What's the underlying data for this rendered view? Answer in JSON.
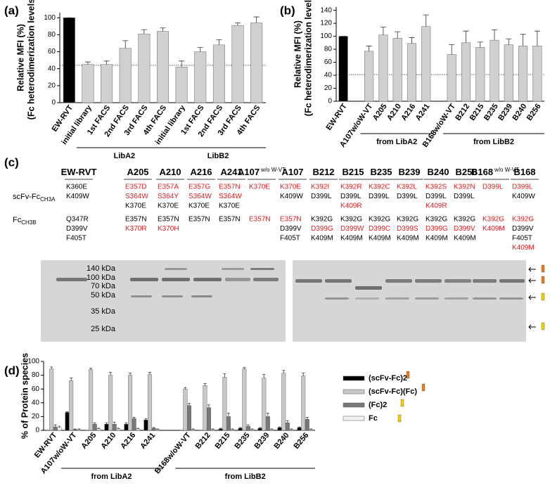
{
  "chart_data": [
    {
      "type": "bar",
      "panel": "(a)",
      "ylabel": [
        "Relative MFI (%)",
        "(Fc heterodimerization levels)"
      ],
      "categories": [
        "EW-RVT",
        "initial library",
        "1st FACS",
        "2nd FACS",
        "3rd FACS",
        "4th FACS",
        "initial library",
        "1st FACS",
        "2nd FACS",
        "3rd FACS",
        "4th FACS"
      ],
      "values": [
        100,
        45,
        45,
        64,
        81,
        84,
        42,
        60,
        68,
        91,
        94
      ],
      "errors": [
        0,
        3,
        4,
        9,
        5,
        4,
        7,
        5,
        6,
        3,
        7
      ],
      "colors": [
        "#000000",
        "#d0d0d0",
        "#d0d0d0",
        "#d0d0d0",
        "#d0d0d0",
        "#d0d0d0",
        "#d0d0d0",
        "#d0d0d0",
        "#d0d0d0",
        "#d0d0d0",
        "#d0d0d0"
      ],
      "ylim": [
        0,
        106
      ],
      "yticks": [
        0,
        20,
        40,
        60,
        80,
        100
      ],
      "ref_line": 44,
      "groups": [
        {
          "label": "LibA2",
          "from": 1,
          "to": 5
        },
        {
          "label": "LibB2",
          "from": 6,
          "to": 10
        }
      ]
    },
    {
      "type": "bar",
      "panel": "(b)",
      "ylabel": [
        "Relative MFI (%)",
        "(Fc heterodimerization levels)"
      ],
      "categories": [
        "EW-RVT",
        "A107w/oW-VT",
        "A205",
        "A210",
        "A216",
        "A241",
        "B168w/oW-VT",
        "B212",
        "B215",
        "B235",
        "B239",
        "B240",
        "B256"
      ],
      "values": [
        100,
        77,
        102,
        97,
        89,
        115,
        72,
        90,
        83,
        94,
        87,
        85,
        85
      ],
      "errors": [
        0,
        8,
        12,
        10,
        9,
        18,
        15,
        18,
        8,
        16,
        9,
        18,
        23
      ],
      "colors": [
        "#000000",
        "#d0d0d0",
        "#d0d0d0",
        "#d0d0d0",
        "#d0d0d0",
        "#d0d0d0",
        "#d0d0d0",
        "#d0d0d0",
        "#d0d0d0",
        "#d0d0d0",
        "#d0d0d0",
        "#d0d0d0",
        "#d0d0d0"
      ],
      "ylim": [
        0,
        145
      ],
      "yticks": [
        0,
        20,
        40,
        60,
        80,
        100,
        120,
        140
      ],
      "ref_line": 41,
      "groups": [
        {
          "label": "from LibA2",
          "from": 1,
          "to": 5
        },
        {
          "label": "from LibB2",
          "from": 6,
          "to": 12
        }
      ]
    },
    {
      "type": "bar",
      "panel": "(d)",
      "ylabel": [
        "% of Protein species"
      ],
      "categories": [
        "EW-RVT",
        "A107w/oW-VT",
        "A205",
        "A210",
        "A216",
        "A241",
        "B168w/oW-VT",
        "B212",
        "B215",
        "B235",
        "B239",
        "B240",
        "B256"
      ],
      "series": [
        {
          "name": "(scFv-Fc)2",
          "color": "#000000",
          "values": [
            0,
            26,
            0,
            9,
            9,
            15,
            0,
            0,
            2,
            3,
            3,
            4,
            4
          ],
          "errors": [
            0,
            1,
            0,
            2,
            2,
            2,
            0,
            0,
            1,
            1,
            1,
            1,
            1
          ]
        },
        {
          "name": "(scFv-Fc)(Fc)",
          "color": "#c8c8c8",
          "values": [
            89,
            72,
            88,
            80,
            80,
            81,
            60,
            65,
            77,
            89,
            76,
            83,
            79
          ],
          "errors": [
            3,
            4,
            2,
            4,
            3,
            3,
            2,
            3,
            5,
            2,
            5,
            4,
            4
          ]
        },
        {
          "name": "(Fc)2",
          "color": "#787878",
          "values": [
            5,
            1,
            9,
            9,
            17,
            3,
            36,
            33,
            20,
            6,
            20,
            11,
            16
          ],
          "errors": [
            3,
            1,
            2,
            3,
            2,
            1,
            3,
            4,
            5,
            2,
            5,
            3,
            3
          ]
        },
        {
          "name": "Fc",
          "color": "#f2f2f2",
          "values": [
            4,
            1,
            2,
            2,
            2,
            1,
            1,
            1,
            1,
            1,
            1,
            1,
            1
          ],
          "errors": [
            2,
            1,
            1,
            1,
            1,
            1,
            1,
            1,
            1,
            1,
            1,
            1,
            1
          ]
        }
      ],
      "ylim": [
        0,
        100
      ],
      "yticks": [
        0,
        20,
        40,
        60,
        80,
        100
      ],
      "groups": [
        {
          "label": "from LibA2",
          "from": 1,
          "to": 5
        },
        {
          "label": "from LibB2",
          "from": 6,
          "to": 12
        }
      ]
    }
  ],
  "mutation_table": {
    "panel": "(c)",
    "row_labels": [
      {
        "text": "scFv-Fc",
        "sub": "CH3A"
      },
      {
        "text": "Fc",
        "sub": "CH3B"
      }
    ],
    "columns": [
      {
        "name": "EW-RVT",
        "a": [
          {
            "t": "K360E",
            "c": "#000000"
          },
          {
            "t": "K409W",
            "c": "#000000"
          }
        ],
        "b": [
          {
            "t": "Q347R",
            "c": "#000000"
          },
          {
            "t": "D399V",
            "c": "#000000"
          },
          {
            "t": "F405T",
            "c": "#000000"
          }
        ]
      },
      {
        "name": "A205",
        "a": [
          {
            "t": "E357D",
            "c": "#e31a1c"
          },
          {
            "t": "S364W",
            "c": "#e31a1c"
          },
          {
            "t": "K370E",
            "c": "#000000"
          }
        ],
        "b": [
          {
            "t": "E357N",
            "c": "#000000"
          },
          {
            "t": "K370R",
            "c": "#e31a1c"
          }
        ]
      },
      {
        "name": "A210",
        "a": [
          {
            "t": "E357A",
            "c": "#e31a1c"
          },
          {
            "t": "S364Y",
            "c": "#e31a1c"
          },
          {
            "t": "K370E",
            "c": "#000000"
          }
        ],
        "b": [
          {
            "t": "E357N",
            "c": "#000000"
          },
          {
            "t": "K370H",
            "c": "#e31a1c"
          }
        ]
      },
      {
        "name": "A216",
        "a": [
          {
            "t": "E357G",
            "c": "#e31a1c"
          },
          {
            "t": "S364W",
            "c": "#e31a1c"
          },
          {
            "t": "K370E",
            "c": "#000000"
          }
        ],
        "b": [
          {
            "t": "E357N",
            "c": "#000000"
          }
        ]
      },
      {
        "name": "A241",
        "a": [
          {
            "t": "E357N",
            "c": "#e31a1c"
          },
          {
            "t": "S364W",
            "c": "#e31a1c"
          },
          {
            "t": "K370E",
            "c": "#000000"
          }
        ],
        "b": [
          {
            "t": "E357N",
            "c": "#000000"
          }
        ]
      },
      {
        "name": "A107",
        "sub": "w/o W-VT",
        "a": [
          {
            "t": "K370E",
            "c": "#e31a1c"
          }
        ],
        "b": [
          {
            "t": "E357N",
            "c": "#e31a1c"
          }
        ]
      },
      {
        "name": "A107",
        "a": [
          {
            "t": "K370E",
            "c": "#e31a1c"
          },
          {
            "t": "K409W",
            "c": "#000000"
          }
        ],
        "b": [
          {
            "t": "E357N",
            "c": "#e31a1c"
          },
          {
            "t": "D399V",
            "c": "#000000"
          },
          {
            "t": "F405T",
            "c": "#000000"
          }
        ]
      },
      {
        "name": "B212",
        "a": [
          {
            "t": "K392I",
            "c": "#e31a1c"
          },
          {
            "t": "D399L",
            "c": "#000000"
          }
        ],
        "b": [
          {
            "t": "K392G",
            "c": "#000000"
          },
          {
            "t": "D399G",
            "c": "#e31a1c"
          },
          {
            "t": "K409M",
            "c": "#000000"
          }
        ]
      },
      {
        "name": "B215",
        "a": [
          {
            "t": "K392R",
            "c": "#e31a1c"
          },
          {
            "t": "D399L",
            "c": "#000000"
          },
          {
            "t": "K409R",
            "c": "#e31a1c"
          }
        ],
        "b": [
          {
            "t": "K392G",
            "c": "#000000"
          },
          {
            "t": "D399W",
            "c": "#e31a1c"
          },
          {
            "t": "K409M",
            "c": "#000000"
          }
        ]
      },
      {
        "name": "B235",
        "a": [
          {
            "t": "K392C",
            "c": "#e31a1c"
          },
          {
            "t": "D399L",
            "c": "#000000"
          }
        ],
        "b": [
          {
            "t": "K392G",
            "c": "#000000"
          },
          {
            "t": "D399C",
            "c": "#e31a1c"
          },
          {
            "t": "K409M",
            "c": "#000000"
          }
        ]
      },
      {
        "name": "B239",
        "a": [
          {
            "t": "K392L",
            "c": "#e31a1c"
          },
          {
            "t": "D399L",
            "c": "#000000"
          }
        ],
        "b": [
          {
            "t": "K392G",
            "c": "#000000"
          },
          {
            "t": "D399S",
            "c": "#e31a1c"
          },
          {
            "t": "K409M",
            "c": "#000000"
          }
        ]
      },
      {
        "name": "B240",
        "a": [
          {
            "t": "K392S",
            "c": "#e31a1c"
          },
          {
            "t": "D399L",
            "c": "#000000"
          },
          {
            "t": "K409R",
            "c": "#e31a1c"
          }
        ],
        "b": [
          {
            "t": "K392G",
            "c": "#000000"
          },
          {
            "t": "D399G",
            "c": "#e31a1c"
          },
          {
            "t": "K409M",
            "c": "#000000"
          }
        ]
      },
      {
        "name": "B256",
        "a": [
          {
            "t": "K392N",
            "c": "#e31a1c"
          },
          {
            "t": "D399L",
            "c": "#000000"
          }
        ],
        "b": [
          {
            "t": "K392G",
            "c": "#000000"
          },
          {
            "t": "D399V",
            "c": "#e31a1c"
          },
          {
            "t": "K409M",
            "c": "#000000"
          }
        ]
      },
      {
        "name": "B168",
        "sub": "w/o W-VT",
        "a": [
          {
            "t": "D399L",
            "c": "#e31a1c"
          }
        ],
        "b": [
          {
            "t": "K392G",
            "c": "#e31a1c"
          },
          {
            "t": "K409M",
            "c": "#e31a1c"
          }
        ]
      },
      {
        "name": "B168",
        "a": [
          {
            "t": "D399L",
            "c": "#e31a1c"
          },
          {
            "t": "K409W",
            "c": "#000000"
          }
        ],
        "b": [
          {
            "t": "K392G",
            "c": "#e31a1c"
          },
          {
            "t": "D399V",
            "c": "#000000"
          },
          {
            "t": "F405T",
            "c": "#000000"
          },
          {
            "t": "K409M",
            "c": "#e31a1c"
          }
        ]
      }
    ]
  },
  "gel": {
    "markers": [
      "140 kDa",
      "100 kDa",
      "70 kDa",
      "50 kDa",
      "35 kDa",
      "25 kDa"
    ]
  }
}
